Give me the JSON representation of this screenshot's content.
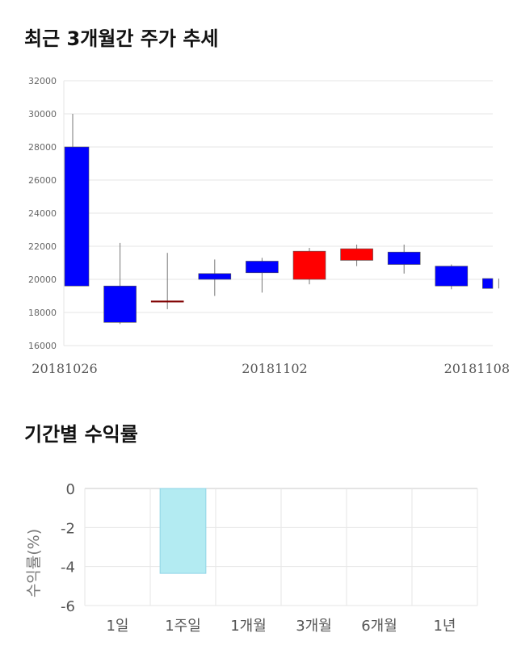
{
  "title_price": "최근 3개월간 주가 추세",
  "title_return": "기간별 수익률",
  "chart_data": [
    {
      "type": "candlestick",
      "ylim": [
        16000,
        32000
      ],
      "y_ticks": [
        "16000",
        "18000",
        "20000",
        "22000",
        "24000",
        "26000",
        "28000",
        "30000",
        "32000"
      ],
      "x_labels": [
        "20181026",
        "20181102",
        "20181108"
      ],
      "grid": true,
      "candles": [
        {
          "open": 28000,
          "close": 19600,
          "high": 30000,
          "low": 19600,
          "color": "#0000ff"
        },
        {
          "open": 19600,
          "close": 17400,
          "high": 22200,
          "low": 17300,
          "color": "#0000ff"
        },
        {
          "open": 18700,
          "close": 18700,
          "high": 21600,
          "low": 18200,
          "color": "#800000"
        },
        {
          "open": 20350,
          "close": 20000,
          "high": 21200,
          "low": 19000,
          "color": "#0000ff"
        },
        {
          "open": 21100,
          "close": 20400,
          "high": 21300,
          "low": 19200,
          "color": "#0000ff"
        },
        {
          "open": 20000,
          "close": 21700,
          "high": 21900,
          "low": 19700,
          "color": "#ff0000"
        },
        {
          "open": 21150,
          "close": 21850,
          "high": 22100,
          "low": 20800,
          "color": "#ff0000"
        },
        {
          "open": 21650,
          "close": 20900,
          "high": 22100,
          "low": 20350,
          "color": "#0000ff"
        },
        {
          "open": 20800,
          "close": 19600,
          "high": 20900,
          "low": 19400,
          "color": "#0000ff"
        },
        {
          "open": 20050,
          "close": 19450,
          "high": 20050,
          "low": 19450,
          "color": "#0000ff"
        }
      ]
    },
    {
      "type": "bar",
      "categories": [
        "1일",
        "1주일",
        "1개월",
        "3개월",
        "6개월",
        "1년"
      ],
      "values": [
        null,
        -4.35,
        null,
        null,
        null,
        null
      ],
      "ylim": [
        -6,
        0
      ],
      "y_ticks": [
        "0",
        "-2",
        "-4",
        "-6"
      ],
      "ylabel": "수익률(%)",
      "bar_color": "#b3ebf2",
      "grid": true
    }
  ]
}
